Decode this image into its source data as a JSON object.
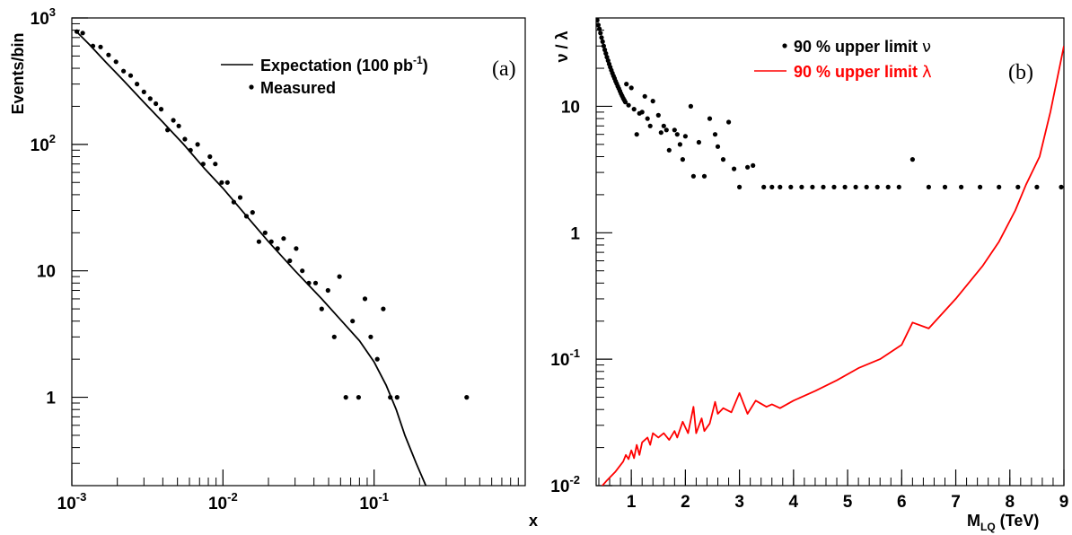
{
  "chart_data": [
    {
      "type": "scatter",
      "panel_label": "(a)",
      "ylabel": "Events/bin",
      "xlabel": "x",
      "log_x": true,
      "log_y": true,
      "xlim": [
        0.001,
        1.0
      ],
      "ylim": [
        0.2,
        1000
      ],
      "x_ticks": [
        {
          "value": 0.001,
          "base": "10",
          "exp": "-3"
        },
        {
          "value": 0.01,
          "base": "10",
          "exp": "-2"
        },
        {
          "value": 0.1,
          "base": "10",
          "exp": "-1"
        }
      ],
      "y_ticks": [
        {
          "value": 1,
          "base": "1",
          "exp": ""
        },
        {
          "value": 10,
          "base": "10",
          "exp": ""
        },
        {
          "value": 100,
          "base": "10",
          "exp": "2"
        },
        {
          "value": 1000,
          "base": "10",
          "exp": "3"
        }
      ],
      "legend": {
        "placement": "top-right",
        "entries": [
          {
            "label_main": "Expectation (100 pb",
            "label_sup": "-1",
            "label_end": ")",
            "marker": "line",
            "color": "#000000"
          },
          {
            "label_main": "Measured",
            "label_sup": "",
            "label_end": "",
            "marker": "dot",
            "color": "#000000"
          }
        ]
      },
      "series": [
        {
          "name": "Expectation (100 pb-1)",
          "kind": "line",
          "color": "#000000",
          "x": [
            0.00105,
            0.0013,
            0.0017,
            0.0022,
            0.003,
            0.004,
            0.0055,
            0.0075,
            0.01,
            0.014,
            0.02,
            0.03,
            0.045,
            0.06,
            0.08,
            0.1,
            0.12,
            0.14,
            0.16,
            0.19,
            0.22
          ],
          "y": [
            800,
            620,
            440,
            320,
            215,
            150,
            100,
            65,
            45,
            28,
            17,
            10,
            6,
            4.1,
            2.8,
            1.9,
            1.25,
            0.8,
            0.5,
            0.3,
            0.2
          ]
        },
        {
          "name": "Measured",
          "kind": "points",
          "color": "#000000",
          "x": [
            0.00108,
            0.00118,
            0.00138,
            0.00155,
            0.00175,
            0.00196,
            0.0022,
            0.00245,
            0.0027,
            0.003,
            0.0033,
            0.0036,
            0.0039,
            0.0043,
            0.0047,
            0.0051,
            0.0056,
            0.0061,
            0.0068,
            0.0074,
            0.0082,
            0.0089,
            0.0098,
            0.0107,
            0.0118,
            0.013,
            0.0143,
            0.0157,
            0.0173,
            0.019,
            0.0209,
            0.023,
            0.0252,
            0.0277,
            0.0305,
            0.0335,
            0.037,
            0.041,
            0.045,
            0.0495,
            0.0545,
            0.059,
            0.065,
            0.072,
            0.079,
            0.087,
            0.095,
            0.105,
            0.115,
            0.128,
            0.142,
            0.41
          ],
          "y": [
            780,
            760,
            600,
            590,
            510,
            450,
            380,
            350,
            300,
            260,
            230,
            210,
            190,
            130,
            155,
            140,
            110,
            90,
            100,
            70,
            80,
            70,
            50,
            50,
            35,
            38,
            27,
            29,
            17,
            20,
            17,
            15,
            18,
            12,
            15,
            10,
            8,
            8,
            5,
            7,
            3,
            9,
            1,
            4,
            1,
            6,
            3,
            2,
            5,
            1,
            1,
            1
          ]
        }
      ]
    },
    {
      "type": "line",
      "panel_label": "(b)",
      "ylabel": "ν / λ",
      "xlabel_main": "M",
      "xlabel_sub": "LQ",
      "xlabel_end": " (TeV)",
      "log_y": true,
      "xlim": [
        0.35,
        9.0
      ],
      "ylim": [
        0.01,
        50
      ],
      "x_ticks": [
        {
          "value": 1,
          "label": "1"
        },
        {
          "value": 2,
          "label": "2"
        },
        {
          "value": 3,
          "label": "3"
        },
        {
          "value": 4,
          "label": "4"
        },
        {
          "value": 5,
          "label": "5"
        },
        {
          "value": 6,
          "label": "6"
        },
        {
          "value": 7,
          "label": "7"
        },
        {
          "value": 8,
          "label": "8"
        },
        {
          "value": 9,
          "label": "9"
        }
      ],
      "y_ticks": [
        {
          "value": 0.01,
          "base": "10",
          "exp": "-2"
        },
        {
          "value": 0.1,
          "base": "10",
          "exp": "-1"
        },
        {
          "value": 1,
          "base": "1",
          "exp": ""
        },
        {
          "value": 10,
          "base": "10",
          "exp": ""
        }
      ],
      "legend": {
        "placement": "top-right",
        "entries": [
          {
            "label_main": "90 % upper limit ",
            "label_greek": "ν",
            "marker": "dot",
            "color": "#000000"
          },
          {
            "label_main": "90 % upper limit ",
            "label_greek": "λ",
            "marker": "line",
            "color": "#ff0000"
          }
        ]
      },
      "series": [
        {
          "name": "90 % upper limit ν",
          "kind": "points",
          "color": "#000000",
          "x": [
            0.37,
            0.39,
            0.41,
            0.43,
            0.45,
            0.47,
            0.49,
            0.51,
            0.53,
            0.55,
            0.57,
            0.59,
            0.61,
            0.63,
            0.65,
            0.67,
            0.69,
            0.71,
            0.73,
            0.75,
            0.77,
            0.79,
            0.81,
            0.83,
            0.85,
            0.87,
            0.89,
            0.91,
            0.95,
            1.0,
            1.05,
            1.1,
            1.15,
            1.2,
            1.25,
            1.3,
            1.35,
            1.4,
            1.5,
            1.55,
            1.6,
            1.65,
            1.7,
            1.8,
            1.85,
            1.9,
            1.95,
            2.0,
            2.1,
            2.15,
            2.25,
            2.35,
            2.45,
            2.55,
            2.6,
            2.7,
            2.8,
            2.9,
            3.0,
            3.15,
            3.25,
            3.45,
            3.6,
            3.75,
            3.95,
            4.15,
            4.35,
            4.55,
            4.75,
            4.95,
            5.15,
            5.35,
            5.55,
            5.75,
            5.95,
            6.2,
            6.5,
            6.8,
            7.1,
            7.45,
            7.8,
            8.15,
            8.5,
            8.95
          ],
          "y": [
            48,
            44,
            41,
            38,
            35,
            32.5,
            30,
            28,
            26.2,
            24.5,
            23,
            21.6,
            20.4,
            19.3,
            18.3,
            17.4,
            16.6,
            15.8,
            15.1,
            14.4,
            13.8,
            13.2,
            12.6,
            12.1,
            11.6,
            11.2,
            10.8,
            15,
            10.2,
            14,
            9.5,
            6,
            8.8,
            9,
            12,
            8,
            7,
            11,
            8.5,
            6.2,
            7,
            6.5,
            4.5,
            6.5,
            6,
            5,
            3.8,
            5.8,
            10,
            2.8,
            5.2,
            2.8,
            8,
            6,
            4.8,
            3.8,
            7.5,
            3.2,
            2.3,
            3.3,
            3.4,
            2.3,
            2.3,
            2.3,
            2.3,
            2.3,
            2.3,
            2.3,
            2.3,
            2.3,
            2.3,
            2.3,
            2.3,
            2.3,
            2.3,
            3.8,
            2.3,
            2.3,
            2.3,
            2.3,
            2.3,
            2.3,
            2.3,
            2.3
          ]
        },
        {
          "name": "90 % upper limit λ",
          "kind": "line",
          "color": "#ff0000",
          "x": [
            0.42,
            0.55,
            0.7,
            0.85,
            0.9,
            0.95,
            1.0,
            1.05,
            1.1,
            1.15,
            1.2,
            1.3,
            1.35,
            1.4,
            1.5,
            1.6,
            1.7,
            1.8,
            1.85,
            1.95,
            2.05,
            2.15,
            2.2,
            2.3,
            2.35,
            2.45,
            2.55,
            2.6,
            2.7,
            2.85,
            3.0,
            3.15,
            3.3,
            3.5,
            3.6,
            3.75,
            4.0,
            4.4,
            4.8,
            5.2,
            5.6,
            6.0,
            6.2,
            6.5,
            7.0,
            7.5,
            7.8,
            8.1,
            8.3,
            8.55,
            8.75,
            9.0
          ],
          "y": [
            0.0095,
            0.011,
            0.0128,
            0.0155,
            0.0175,
            0.0162,
            0.019,
            0.0165,
            0.021,
            0.0175,
            0.022,
            0.024,
            0.021,
            0.026,
            0.024,
            0.026,
            0.023,
            0.027,
            0.024,
            0.032,
            0.026,
            0.042,
            0.026,
            0.034,
            0.027,
            0.031,
            0.046,
            0.037,
            0.041,
            0.038,
            0.054,
            0.037,
            0.047,
            0.042,
            0.044,
            0.041,
            0.047,
            0.056,
            0.068,
            0.085,
            0.1,
            0.13,
            0.195,
            0.175,
            0.3,
            0.55,
            0.85,
            1.5,
            2.4,
            4,
            9,
            30
          ]
        }
      ]
    }
  ]
}
